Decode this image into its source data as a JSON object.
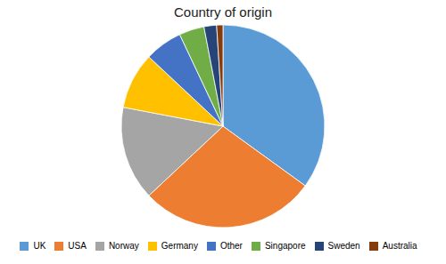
{
  "chart_data": {
    "type": "pie",
    "title": "Country of origin",
    "categories": [
      "UK",
      "USA",
      "Norway",
      "Germany",
      "Other",
      "Singapore",
      "Sweden",
      "Australia"
    ],
    "values": [
      35,
      28,
      15,
      9,
      6,
      4,
      2,
      1
    ],
    "colors": [
      "#5B9BD5",
      "#ED7D31",
      "#A5A5A5",
      "#FFC000",
      "#4472C4",
      "#70AD47",
      "#264478",
      "#843C0C"
    ],
    "legend": "bottom"
  }
}
